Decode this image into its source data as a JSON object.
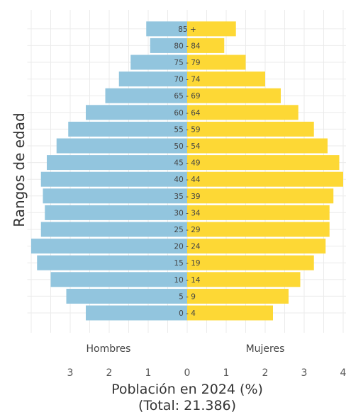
{
  "chart_data": {
    "type": "bar",
    "orientation": "horizontal-pyramid",
    "title": "",
    "xlabel": "Población en 2024 (%)",
    "xlabel_sub": "(Total: 21.386)",
    "ylabel": "Rangos de edad",
    "side_labels": {
      "left": "Hombres",
      "right": "Mujeres"
    },
    "categories": [
      "0 - 4",
      "5 - 9",
      "10 - 14",
      "15 - 19",
      "20 - 24",
      "25 - 29",
      "30 - 34",
      "35 - 39",
      "40 - 44",
      "45 - 49",
      "50 - 54",
      "55 - 59",
      "60 - 64",
      "65 - 69",
      "70 - 74",
      "75 - 79",
      "80 - 84",
      "85 +"
    ],
    "series": [
      {
        "name": "Hombres",
        "color": "#92c5de",
        "values": [
          2.6,
          3.1,
          3.5,
          3.85,
          4.0,
          3.75,
          3.65,
          3.7,
          3.75,
          3.6,
          3.35,
          3.05,
          2.6,
          2.1,
          1.75,
          1.45,
          0.95,
          1.05
        ]
      },
      {
        "name": "Mujeres",
        "color": "#fdd835",
        "values": [
          2.2,
          2.6,
          2.9,
          3.25,
          3.55,
          3.65,
          3.65,
          3.75,
          4.0,
          3.9,
          3.6,
          3.25,
          2.85,
          2.4,
          2.0,
          1.5,
          0.95,
          1.25
        ]
      }
    ],
    "xticks_left": [
      3,
      2,
      1,
      0
    ],
    "xticks_right": [
      1,
      2,
      3,
      4
    ],
    "xlim": [
      -4,
      4
    ],
    "grid": true
  }
}
